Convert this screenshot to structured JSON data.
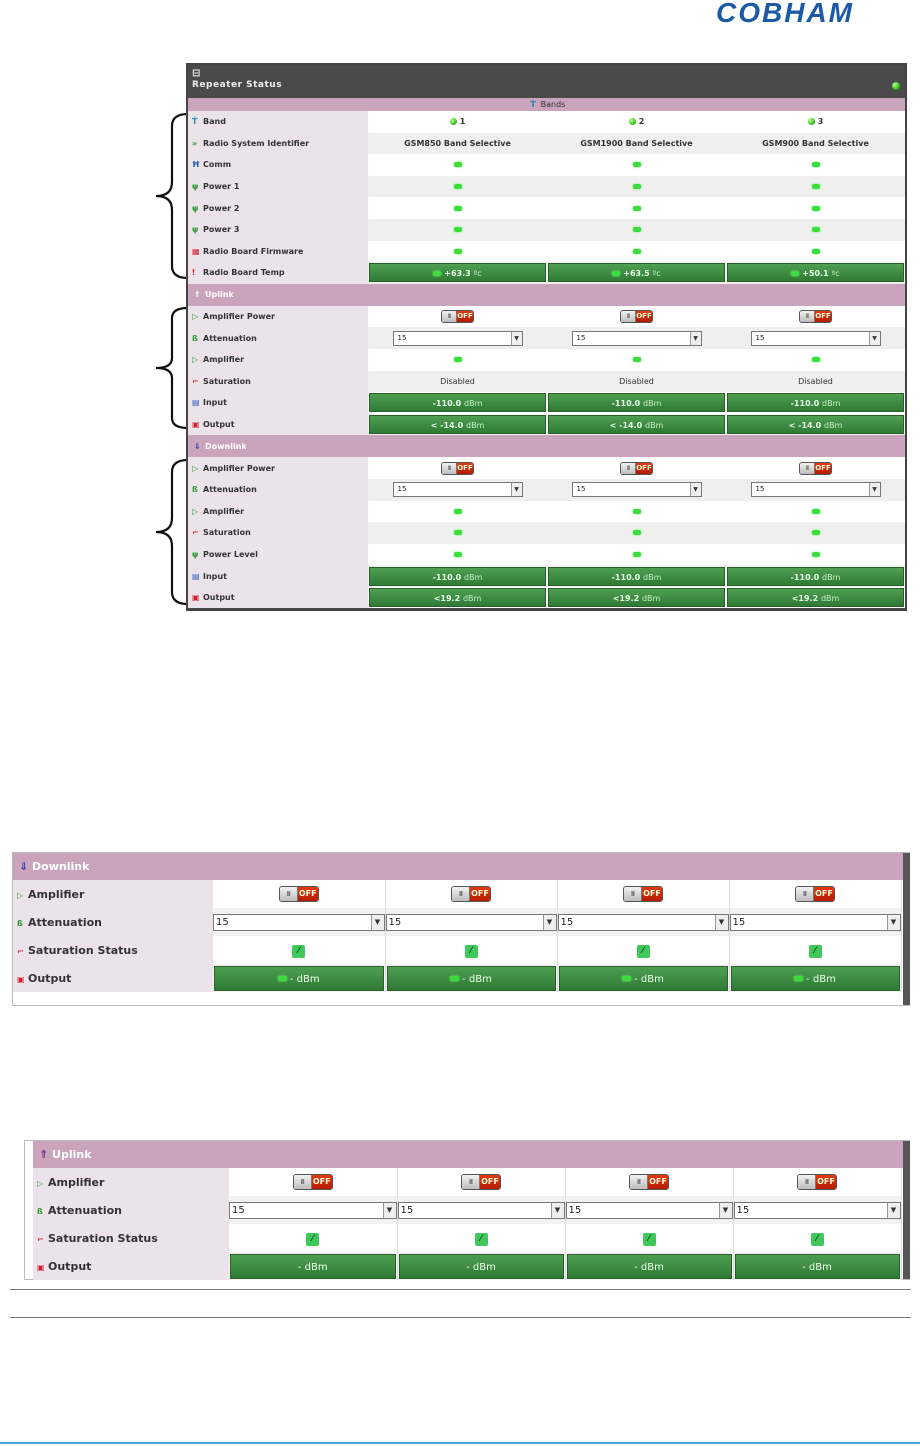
{
  "brand": {
    "logo": "COBHAM"
  },
  "repeater": {
    "title": "Repeater Status",
    "minimize_icon": "⊟",
    "bands_header": "Bands",
    "rows": {
      "band": "Band",
      "rsi": "Radio System Identifier",
      "comm": "Comm",
      "power1": "Power 1",
      "power2": "Power 2",
      "power3": "Power 3",
      "firmware": "Radio Board Firmware",
      "temp": "Radio Board Temp"
    },
    "bands": [
      {
        "num": "1",
        "rsi": "GSM850 Band Selective",
        "temp": "+63.3",
        "temp_unit": "ºc"
      },
      {
        "num": "2",
        "rsi": "GSM1900 Band Selective",
        "temp": "+63.5",
        "temp_unit": "ºc"
      },
      {
        "num": "3",
        "rsi": "GSM900 Band Selective",
        "temp": "+50.1",
        "temp_unit": "ºc"
      }
    ],
    "uplink": {
      "header": "Uplink",
      "amp_power": "Amplifier Power",
      "attenuation": "Attenuation",
      "amplifier": "Amplifier",
      "saturation": "Saturation",
      "input": "Input",
      "output": "Output",
      "toggle_label": "OFF",
      "att_value": "15",
      "sat_value": "Disabled",
      "input_value": "-110.0",
      "output_value": "< -14.0",
      "unit": "dBm"
    },
    "downlink": {
      "header": "Downlink",
      "amp_power": "Amplifier Power",
      "attenuation": "Attenuation",
      "amplifier": "Amplifier",
      "saturation": "Saturation",
      "power_level": "Power Level",
      "input": "Input",
      "output": "Output",
      "toggle_label": "OFF",
      "att_value": "15",
      "input_value": "-110.0",
      "output_value": "<19.2",
      "unit": "dBm"
    }
  },
  "downlink_panel": {
    "header": "Downlink",
    "amplifier": "Amplifier",
    "attenuation": "Attenuation",
    "saturation": "Saturation Status",
    "output": "Output",
    "toggle_label": "OFF",
    "att_value": "15",
    "output_value": "- dBm"
  },
  "uplink_panel": {
    "header": "Uplink",
    "amplifier": "Amplifier",
    "attenuation": "Attenuation",
    "saturation": "Saturation Status",
    "output": "Output",
    "toggle_label": "OFF",
    "att_value": "15",
    "output_value": "- dBm"
  },
  "colors": {
    "section_bg": "#c9a4bc",
    "label_bg": "#ece2ea",
    "value_green": "#3b8c40",
    "toggle_off": "#c92a06",
    "led_green": "#3ddc3d"
  }
}
